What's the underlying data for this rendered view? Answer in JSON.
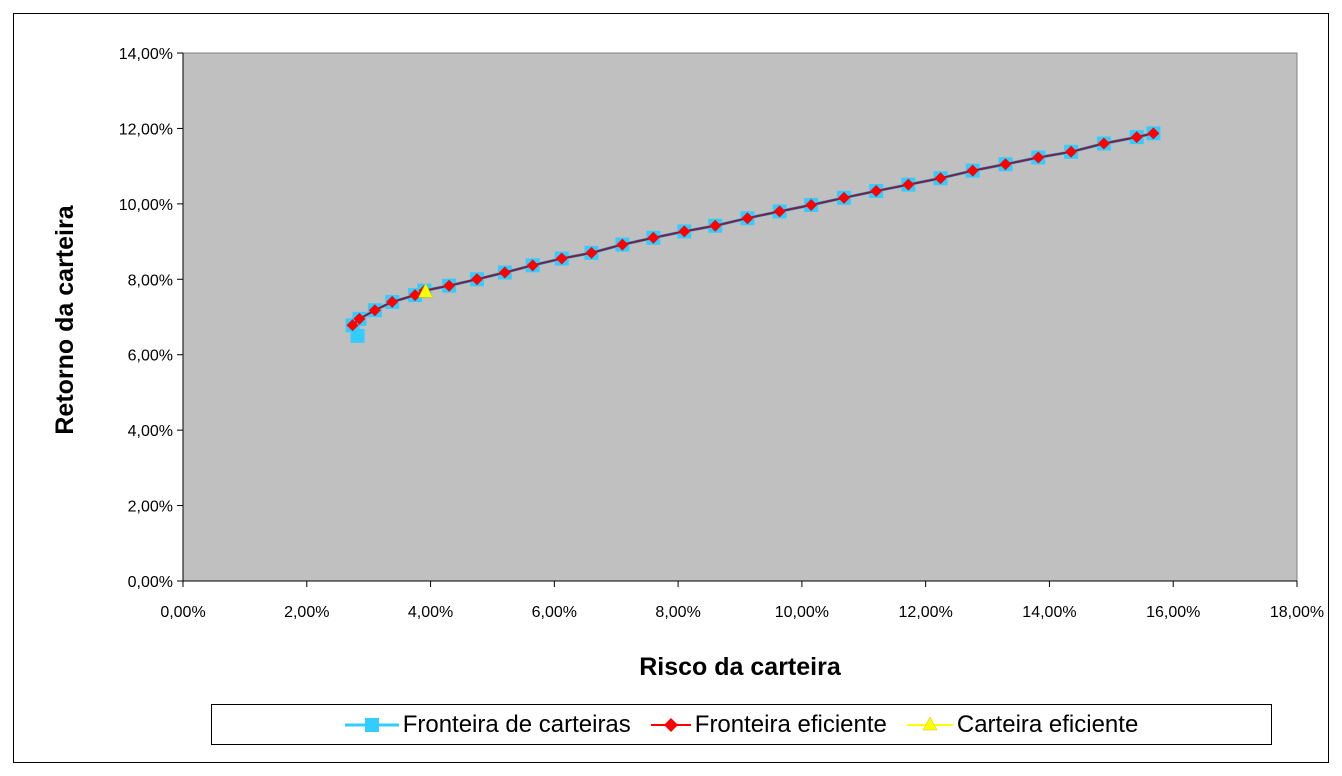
{
  "chart_data": {
    "type": "line",
    "xlabel": "Risco da carteira",
    "ylabel": "Retorno da carteira",
    "xlim": [
      0,
      18
    ],
    "ylim": [
      0,
      14
    ],
    "x_tick_labels": [
      "0,00%",
      "2,00%",
      "4,00%",
      "6,00%",
      "8,00%",
      "10,00%",
      "12,00%",
      "14,00%",
      "16,00%",
      "18,00%"
    ],
    "y_tick_labels": [
      "0,00%",
      "2,00%",
      "4,00%",
      "6,00%",
      "8,00%",
      "10,00%",
      "12,00%",
      "14,00%"
    ],
    "grid": false,
    "plot_background": "#c0c0c0",
    "legend_position": "bottom",
    "series": [
      {
        "name": "Fronteira de carteiras",
        "marker": "square",
        "color": "#33ccff",
        "line_color": "#00b0f0",
        "points": [
          [
            2.82,
            6.5
          ],
          [
            2.74,
            6.78
          ],
          [
            2.85,
            6.95
          ],
          [
            3.1,
            7.18
          ],
          [
            3.38,
            7.4
          ],
          [
            3.75,
            7.58
          ],
          [
            3.9,
            7.7
          ],
          [
            4.3,
            7.83
          ],
          [
            4.75,
            8.0
          ],
          [
            5.2,
            8.18
          ],
          [
            5.65,
            8.37
          ],
          [
            6.12,
            8.55
          ],
          [
            6.6,
            8.7
          ],
          [
            7.1,
            8.92
          ],
          [
            7.6,
            9.1
          ],
          [
            8.1,
            9.27
          ],
          [
            8.6,
            9.42
          ],
          [
            9.12,
            9.62
          ],
          [
            9.64,
            9.8
          ],
          [
            10.15,
            9.97
          ],
          [
            10.68,
            10.16
          ],
          [
            11.2,
            10.34
          ],
          [
            11.72,
            10.51
          ],
          [
            12.24,
            10.68
          ],
          [
            12.76,
            10.88
          ],
          [
            13.29,
            11.05
          ],
          [
            13.82,
            11.23
          ],
          [
            14.35,
            11.38
          ],
          [
            14.88,
            11.6
          ],
          [
            15.41,
            11.77
          ],
          [
            15.68,
            11.87
          ]
        ]
      },
      {
        "name": "Fronteira eficiente",
        "marker": "diamond",
        "color": "#ff0000",
        "line_color": "#8b1a3a",
        "points": [
          [
            2.74,
            6.78
          ],
          [
            2.85,
            6.95
          ],
          [
            3.1,
            7.18
          ],
          [
            3.38,
            7.4
          ],
          [
            3.75,
            7.58
          ],
          [
            3.9,
            7.7
          ],
          [
            4.3,
            7.83
          ],
          [
            4.75,
            8.0
          ],
          [
            5.2,
            8.18
          ],
          [
            5.65,
            8.37
          ],
          [
            6.12,
            8.55
          ],
          [
            6.6,
            8.7
          ],
          [
            7.1,
            8.92
          ],
          [
            7.6,
            9.1
          ],
          [
            8.1,
            9.27
          ],
          [
            8.6,
            9.42
          ],
          [
            9.12,
            9.62
          ],
          [
            9.64,
            9.8
          ],
          [
            10.15,
            9.97
          ],
          [
            10.68,
            10.16
          ],
          [
            11.2,
            10.34
          ],
          [
            11.72,
            10.51
          ],
          [
            12.24,
            10.68
          ],
          [
            12.76,
            10.88
          ],
          [
            13.29,
            11.05
          ],
          [
            13.82,
            11.23
          ],
          [
            14.35,
            11.38
          ],
          [
            14.88,
            11.6
          ],
          [
            15.41,
            11.77
          ],
          [
            15.68,
            11.87
          ]
        ]
      },
      {
        "name": "Carteira eficiente",
        "marker": "triangle",
        "color": "#ffff00",
        "line_color": "#ffff00",
        "points": [
          [
            3.92,
            7.68
          ]
        ]
      }
    ]
  }
}
